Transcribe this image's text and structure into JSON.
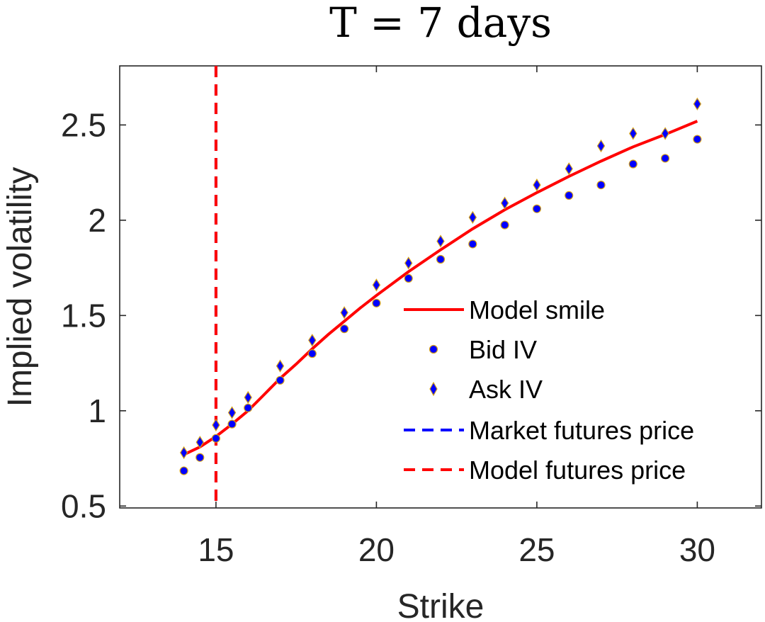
{
  "chart_data": {
    "type": "scatter",
    "title": "T = 7 days",
    "xlabel": "Strike",
    "ylabel": "Implied volatility",
    "xlim": [
      12,
      32
    ],
    "ylim": [
      0.49,
      2.81
    ],
    "xticks": [
      15,
      20,
      25,
      30
    ],
    "yticks": [
      0.5,
      1,
      1.5,
      2,
      2.5
    ],
    "xtick_labels": [
      "15",
      "20",
      "25",
      "30"
    ],
    "ytick_labels": [
      "0.5",
      "1",
      "1.5",
      "2",
      "2.5"
    ],
    "grid": false,
    "legend_position": "lower-right",
    "series": [
      {
        "name": "Model smile",
        "kind": "line",
        "color": "#ff0000",
        "x": [
          14,
          14.5,
          15,
          15.5,
          16,
          16.5,
          17,
          17.5,
          18,
          18.5,
          19,
          19.5,
          20,
          21,
          22,
          23,
          24,
          25,
          26,
          27,
          28,
          29,
          30
        ],
        "y": [
          0.77,
          0.81,
          0.865,
          0.93,
          1.0,
          1.085,
          1.17,
          1.245,
          1.325,
          1.4,
          1.47,
          1.54,
          1.605,
          1.73,
          1.845,
          1.955,
          2.055,
          2.145,
          2.23,
          2.31,
          2.385,
          2.45,
          2.52
        ]
      },
      {
        "name": "Bid IV",
        "kind": "scatter",
        "marker": "circle",
        "color": "#0000ff",
        "edge_color": "#d4a017",
        "x": [
          14,
          14.5,
          15,
          15.5,
          16,
          17,
          18,
          19,
          20,
          21,
          22,
          23,
          24,
          25,
          26,
          27,
          28,
          29,
          30
        ],
        "y": [
          0.685,
          0.755,
          0.855,
          0.93,
          1.015,
          1.16,
          1.3,
          1.43,
          1.565,
          1.695,
          1.795,
          1.875,
          1.975,
          2.06,
          2.13,
          2.185,
          2.295,
          2.325,
          2.425
        ]
      },
      {
        "name": "Ask IV",
        "kind": "scatter",
        "marker": "diamond",
        "color": "#0000ff",
        "edge_color": "#d4a017",
        "x": [
          14,
          14.5,
          15,
          15.5,
          16,
          17,
          18,
          19,
          20,
          21,
          22,
          23,
          24,
          25,
          26,
          27,
          28,
          29,
          30
        ],
        "y": [
          0.78,
          0.835,
          0.925,
          0.99,
          1.07,
          1.235,
          1.37,
          1.515,
          1.66,
          1.775,
          1.89,
          2.015,
          2.09,
          2.185,
          2.27,
          2.39,
          2.455,
          2.455,
          2.61
        ]
      },
      {
        "name": "Market futures price",
        "kind": "vline",
        "style": "dashed",
        "color": "#0000ff",
        "x": 15
      },
      {
        "name": "Model futures price",
        "kind": "vline",
        "style": "dashed",
        "color": "#ff0000",
        "x": 15
      }
    ]
  }
}
